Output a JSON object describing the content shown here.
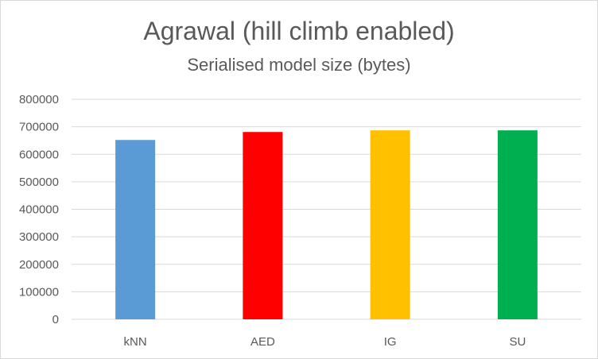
{
  "chart_data": {
    "type": "bar",
    "title": "Agrawal (hill climb enabled)",
    "subtitle": "Serialised model size (bytes)",
    "xlabel": "",
    "ylabel": "",
    "categories": [
      "kNN",
      "AED",
      "IG",
      "SU"
    ],
    "values": [
      652000,
      681000,
      687000,
      687000
    ],
    "colors": [
      "#5b9bd5",
      "#ff0000",
      "#ffc000",
      "#00b050"
    ],
    "ylim": [
      0,
      800000
    ],
    "yticks": [
      0,
      100000,
      200000,
      300000,
      400000,
      500000,
      600000,
      700000,
      800000
    ],
    "ytick_labels": [
      "0",
      "100000",
      "200000",
      "300000",
      "400000",
      "500000",
      "600000",
      "700000",
      "800000"
    ],
    "grid": true,
    "legend": "none"
  }
}
